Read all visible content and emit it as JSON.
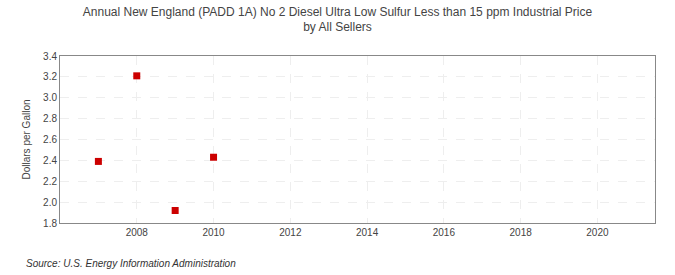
{
  "chart_data": {
    "type": "scatter",
    "title": "Annual New England (PADD 1A) No 2 Diesel Ultra Low Sulfur Less than 15 ppm Industrial Price\nby All Sellers",
    "ylabel": "Dollars per Gallon",
    "annotations": [
      "Source: U.S. Energy Information Administration"
    ],
    "x": [
      2007,
      2008,
      2009,
      2010
    ],
    "values": [
      2.39,
      3.21,
      1.92,
      2.43
    ],
    "color": "#cc0000",
    "marker": "square",
    "xlim": [
      2006.0,
      2021.5
    ],
    "ylim": [
      1.8,
      3.4
    ],
    "xticks": [
      2008,
      2010,
      2012,
      2014,
      2016,
      2018,
      2020
    ],
    "yticks": [
      1.8,
      {
        "value": 2.0,
        "label": "2.0"
      },
      2.2,
      2.4,
      2.6,
      2.8,
      {
        "value": 3.0,
        "label": "3.0"
      },
      3.2,
      3.4
    ],
    "grid": true
  }
}
